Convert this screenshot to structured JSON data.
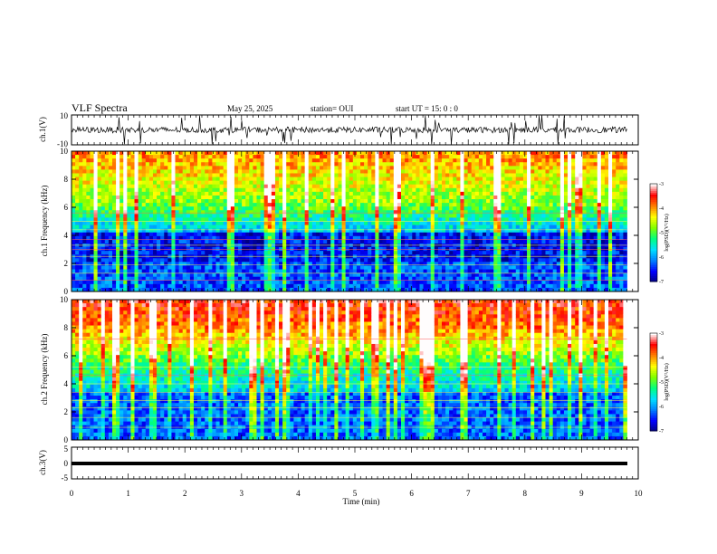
{
  "header": {
    "title": "VLF Spectra",
    "date": "May 25, 2025",
    "station": "station= OUI",
    "start": "start  UT =   15: 0  : 0"
  },
  "chart_data": [
    {
      "type": "line",
      "name": "ch1-waveform",
      "ylabel": "ch.1(V)",
      "ylim": [
        -10,
        10
      ],
      "yticks": [
        "10",
        "-10"
      ],
      "xlim": [
        0,
        10
      ],
      "baseline": 0,
      "color": "#000000"
    },
    {
      "type": "heatmap",
      "name": "ch1-spectrogram",
      "ylabel": "ch.1 Frequency (kHz)",
      "ylim": [
        0,
        10
      ],
      "yticks": [
        "0",
        "2",
        "4",
        "6",
        "8",
        "10"
      ],
      "xlim": [
        0,
        9.8
      ],
      "colorbar": {
        "label": "log(PSD)(V²/Hz)",
        "range": [
          -7,
          -3
        ],
        "ticks": [
          "-3",
          "-4",
          "-5",
          "-6",
          "-7"
        ]
      }
    },
    {
      "type": "heatmap",
      "name": "ch2-spectrogram",
      "ylabel": "ch.2 Frequency (kHz)",
      "ylim": [
        0,
        10
      ],
      "yticks": [
        "0",
        "2",
        "4",
        "6",
        "8",
        "10"
      ],
      "xlim": [
        0,
        9.8
      ],
      "colorbar": {
        "label": "log(PSD)(V²/Hz)",
        "range": [
          -7,
          -3
        ],
        "ticks": [
          "-3",
          "-4",
          "-5",
          "-6",
          "-7"
        ]
      }
    },
    {
      "type": "line",
      "name": "ch3-waveform",
      "ylabel": "ch.3(V)",
      "ylim": [
        -5,
        5
      ],
      "yticks": [
        "5",
        "0",
        "-5"
      ],
      "xlim": [
        0,
        10
      ],
      "baseline": 0,
      "color": "#000000"
    }
  ],
  "xaxis": {
    "label": "Time (min)",
    "ticks": [
      "0",
      "1",
      "2",
      "3",
      "4",
      "5",
      "6",
      "7",
      "8",
      "9",
      "10"
    ],
    "range": [
      0,
      10
    ]
  },
  "colormap": [
    "#000080",
    "#0000ff",
    "#0080ff",
    "#00e0ff",
    "#00ff80",
    "#80ff00",
    "#ffff00",
    "#ff8000",
    "#ff0000",
    "#ffffff"
  ]
}
